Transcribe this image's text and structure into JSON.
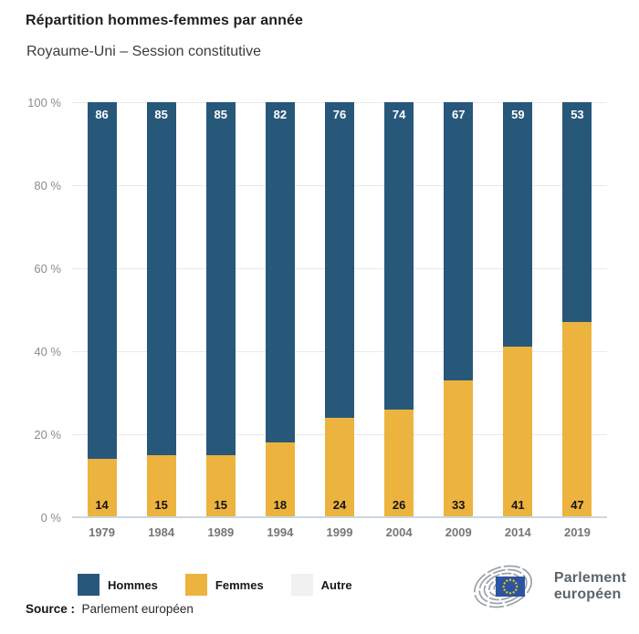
{
  "header": {
    "title": "Répartition hommes-femmes par année",
    "subtitle": "Royaume-Uni – Session constitutive"
  },
  "chart_data": {
    "type": "bar",
    "stacked": true,
    "title": "Répartition hommes-femmes par année",
    "subtitle": "Royaume-Uni – Session constitutive",
    "categories": [
      "1979",
      "1984",
      "1989",
      "1994",
      "1999",
      "2004",
      "2009",
      "2014",
      "2019"
    ],
    "series": [
      {
        "name": "Hommes",
        "color": "#27587a",
        "values": [
          86,
          85,
          85,
          82,
          76,
          74,
          67,
          59,
          53
        ]
      },
      {
        "name": "Femmes",
        "color": "#ecb33e",
        "values": [
          14,
          15,
          15,
          18,
          24,
          26,
          33,
          41,
          47
        ]
      },
      {
        "name": "Autre",
        "color": "#f1f1f1",
        "values": [
          0,
          0,
          0,
          0,
          0,
          0,
          0,
          0,
          0
        ]
      }
    ],
    "ylim": [
      0,
      100
    ],
    "yticks": [
      "0 %",
      "20 %",
      "40 %",
      "60 %",
      "80 %",
      "100 %"
    ],
    "grid": true,
    "legend_position": "bottom",
    "value_labels": {
      "Hommes": "inside-top-white",
      "Femmes": "inside-bottom-black"
    }
  },
  "legend": {
    "items": [
      {
        "label": "Hommes",
        "color": "#27587a"
      },
      {
        "label": "Femmes",
        "color": "#ecb33e"
      },
      {
        "label": "Autre",
        "color": "#f1f1f1"
      }
    ]
  },
  "footer": {
    "source_label": "Source :",
    "source_value": "Parlement européen",
    "logo": {
      "line1": "Parlement",
      "line2": "européen"
    }
  },
  "colors": {
    "hommes": "#27587a",
    "femmes": "#ecb33e",
    "autre": "#f1f1f1",
    "background": "#ffffff",
    "grid": "#e9e9e9",
    "baseline": "#ccd8e0",
    "eu_flag_blue": "#2d54a2",
    "eu_star_gold": "#ffcc00",
    "logo_gray": "#9aa2a9"
  }
}
